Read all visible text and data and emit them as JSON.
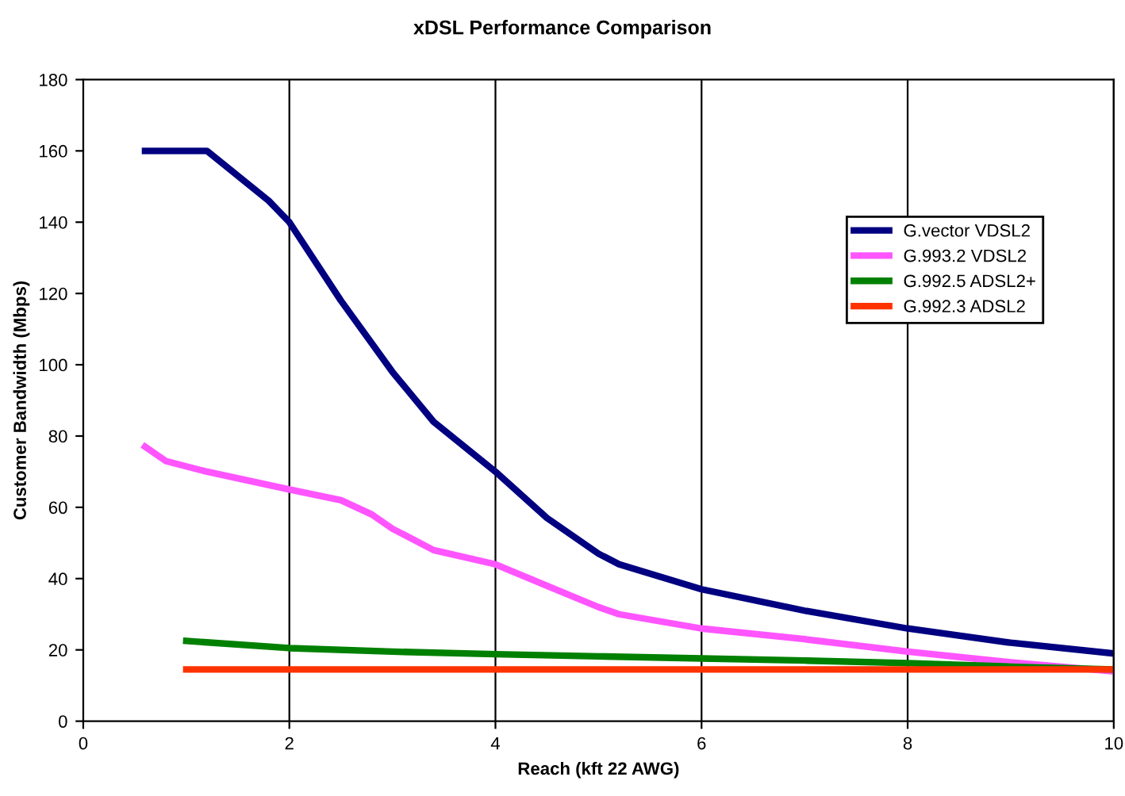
{
  "chart_data": {
    "type": "line",
    "title": "xDSL Performance Comparison",
    "xlabel": "Reach (kft 22 AWG)",
    "ylabel": "Customer Bandwidth (Mbps)",
    "xlim": [
      0,
      10
    ],
    "xticks": [
      0,
      2,
      4,
      6,
      8,
      10
    ],
    "ylim": [
      0,
      180
    ],
    "yticks": [
      0,
      20,
      40,
      60,
      80,
      100,
      120,
      140,
      160,
      180
    ],
    "grid": "x",
    "legend": "top right",
    "marker": "none",
    "line_style": "solid",
    "series": [
      {
        "name": "G.vector VDSL2",
        "color": "#000080",
        "x": [
          0.6,
          1.2,
          1.8,
          2.0,
          2.5,
          3.0,
          3.4,
          4.0,
          4.5,
          5.0,
          5.2,
          6.0,
          7.0,
          8.0,
          9.0,
          10.0
        ],
        "values": [
          160,
          160,
          146,
          140,
          118,
          98,
          84,
          70,
          57,
          47,
          44,
          37,
          31,
          26,
          22,
          19
        ]
      },
      {
        "name": "G.993.2 VDSL2",
        "color": "#ff55ff",
        "x": [
          0.6,
          0.8,
          1.2,
          2.0,
          2.5,
          2.8,
          3.0,
          3.4,
          4.0,
          4.5,
          5.0,
          5.2,
          6.0,
          7.0,
          8.0,
          9.0,
          10.0
        ],
        "values": [
          77,
          73,
          70,
          65,
          62,
          58,
          54,
          48,
          44,
          38,
          32,
          30,
          26,
          23,
          19.5,
          16.5,
          14
        ]
      },
      {
        "name": "G.992.5 ADSL2+",
        "color": "#008000",
        "x": [
          1,
          2,
          3,
          4,
          5,
          6,
          7,
          8,
          9,
          10
        ],
        "values": [
          22.5,
          20.5,
          19.5,
          18.8,
          18.2,
          17.6,
          17,
          16.3,
          15.3,
          14.5
        ]
      },
      {
        "name": "G.992.3 ADSL2",
        "color": "#ff3300",
        "x": [
          1,
          10
        ],
        "values": [
          14.5,
          14.5
        ]
      }
    ]
  }
}
